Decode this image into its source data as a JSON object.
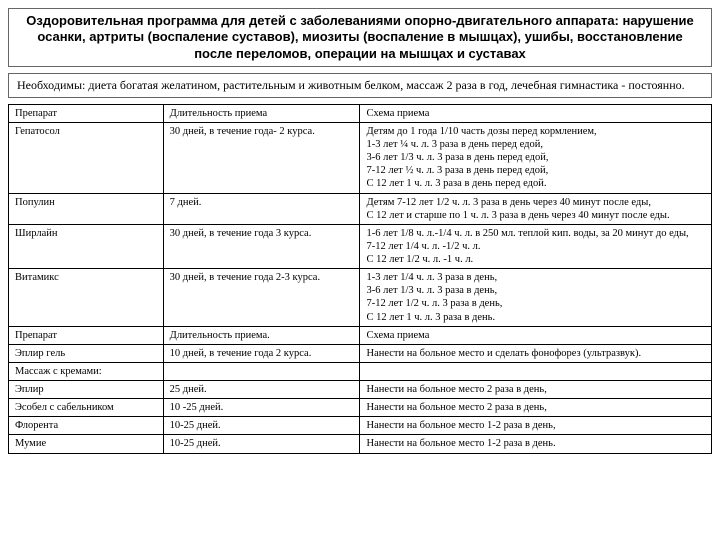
{
  "title": "Оздоровительная программа для детей с заболеваниями опорно-двигательного аппарата: нарушение осанки, артриты (воспаление суставов), миозиты (воспаление в мышцах), ушибы, восстановление после переломов, операции на мышцах и суставах",
  "note": "Необходимы: диета богатая желатином, растительным и животным белком, массаж 2 раза в год, лечебная гимнастика - постоянно.",
  "headers": {
    "c1": "Препарат",
    "c2": "Длительность приема",
    "c3": "Схема приема"
  },
  "rows1": [
    {
      "c1": "Гепатосол",
      "c2": "30 дней, в течение года- 2 курса.",
      "c3": "Детям до 1 года 1/10 часть дозы перед кормлением,\n1-3 лет ¼ ч. л. 3 раза в день перед едой,\n3-6 лет 1/3 ч. л. 3 раза в день перед едой,\n7-12 лет ½ ч. л. 3 раза в день перед едой,\nС 12 лет 1 ч. л. 3 раза в день перед едой."
    },
    {
      "c1": "Популин",
      "c2": "7 дней.",
      "c3": "Детям 7-12 лет 1/2 ч. л. 3 раза в день через 40 минут после еды,\nС 12 лет и старше по 1 ч. л. 3 раза в день через 40 минут после еды."
    },
    {
      "c1": "Ширлайн",
      "c2": "30 дней, в течение года 3 курса.",
      "c3": "1-6 лет 1/8 ч. л.-1/4 ч. л. в 250 мл. теплой кип. воды, за 20 минут до еды,\n7-12 лет 1/4 ч. л. -1/2 ч. л.\nС 12 лет 1/2 ч. л. -1 ч. л."
    },
    {
      "c1": "Витамикс",
      "c2": "30 дней, в течение года 2-3 курса.",
      "c3": "1-3 лет 1/4 ч. л. 3 раза в день,\n3-6 лет 1/3 ч. л. 3 раза в день,\n7-12 лет 1/2 ч. л. 3 раза в день,\nС 12 лет 1 ч. л. 3 раза в день."
    }
  ],
  "headers2": {
    "c1": "Препарат",
    "c2": "Длительность приема.",
    "c3": "Схема приема"
  },
  "rows2": [
    {
      "c1": "Эплир гель",
      "c2": "10 дней, в течение года 2 курса.",
      "c3": "Нанести на больное место и сделать фонофорез (ультразвук)."
    }
  ],
  "massage_label": "Массаж с кремами:",
  "rows3": [
    {
      "c1": "Эплир",
      "c2": "25 дней.",
      "c3": "Нанести на больное место 2 раза в день,"
    },
    {
      "c1": "Эсобел с сабельником",
      "c2": "10 -25 дней.",
      "c3": "Нанести на больное место 2 раза в день,"
    },
    {
      "c1": "Флорента",
      "c2": "10-25 дней.",
      "c3": "Нанести на больное место 1-2 раза в день,"
    },
    {
      "c1": "Мумие",
      "c2": "10-25 дней.",
      "c3": "Нанести на больное место 1-2 раза в день."
    }
  ]
}
